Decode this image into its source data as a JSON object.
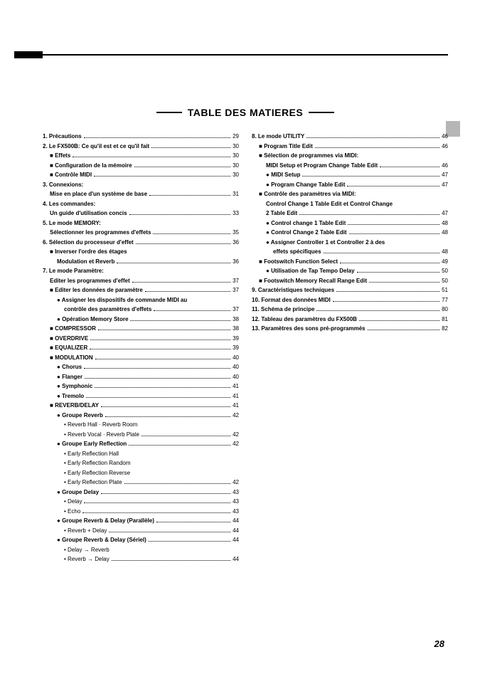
{
  "title": "TABLE DES MATIERES",
  "page_number": "28",
  "left": [
    {
      "cls": "",
      "ind": 0,
      "label": "1. Précautions",
      "page": "29"
    },
    {
      "cls": "",
      "ind": 0,
      "label": "2. Le FX500B: Ce qu'il est et ce qu'il fait",
      "page": "30"
    },
    {
      "cls": "sq",
      "ind": 1,
      "label": "Effets",
      "page": "30"
    },
    {
      "cls": "sq",
      "ind": 1,
      "label": "Configuration de la mémoire",
      "page": "30"
    },
    {
      "cls": "sq",
      "ind": 1,
      "label": "Contrôle MIDI",
      "page": "30"
    },
    {
      "cls": "",
      "ind": 0,
      "label": "3. Connexions:",
      "nopage": true
    },
    {
      "cls": "",
      "ind": 1,
      "label": "Mise en place d'un système de base",
      "page": "31"
    },
    {
      "cls": "",
      "ind": 0,
      "label": "4. Les commandes:",
      "nopage": true
    },
    {
      "cls": "",
      "ind": 1,
      "label": "Un guide d'utilisation concis",
      "page": "33"
    },
    {
      "cls": "",
      "ind": 0,
      "label": "5. Le mode MEMORY:",
      "nopage": true
    },
    {
      "cls": "",
      "ind": 1,
      "label": "Sélectionner les programmes d'effets",
      "page": "35"
    },
    {
      "cls": "",
      "ind": 0,
      "label": "6. Sélection du processeur d'effet",
      "page": "36"
    },
    {
      "cls": "sq",
      "ind": 1,
      "label": "Inverser l'ordre des étages",
      "nopage": true
    },
    {
      "cls": "",
      "ind": 2,
      "label": "Modulation et Reverb",
      "page": "36"
    },
    {
      "cls": "",
      "ind": 0,
      "label": "7. Le mode Paramètre:",
      "nopage": true
    },
    {
      "cls": "",
      "ind": 1,
      "label": "Editer les programmes d'effet",
      "page": "37"
    },
    {
      "cls": "sq",
      "ind": 1,
      "label": "Editer les données de paramètre",
      "page": "37"
    },
    {
      "cls": "dot",
      "ind": 2,
      "label": "Assigner les dispositifs de commande MIDI au",
      "nopage": true
    },
    {
      "cls": "",
      "ind": 3,
      "label": "contrôle des paramètres d'effets",
      "page": "37"
    },
    {
      "cls": "dot",
      "ind": 2,
      "label": "Opération Memory Store",
      "page": "38"
    },
    {
      "cls": "sq",
      "ind": 1,
      "label": "COMPRESSOR",
      "page": "38"
    },
    {
      "cls": "sq",
      "ind": 1,
      "label": "OVERDRIVE",
      "page": "39"
    },
    {
      "cls": "sq",
      "ind": 1,
      "label": "EQUALIZER",
      "page": "39"
    },
    {
      "cls": "sq",
      "ind": 1,
      "label": "MODULATION",
      "page": "40"
    },
    {
      "cls": "dot",
      "ind": 2,
      "label": "Chorus",
      "page": "40"
    },
    {
      "cls": "dot",
      "ind": 2,
      "label": "Flanger",
      "page": "40"
    },
    {
      "cls": "dot",
      "ind": 2,
      "label": "Symphonic",
      "page": "41"
    },
    {
      "cls": "dot",
      "ind": 2,
      "label": "Tremolo",
      "page": "41"
    },
    {
      "cls": "sq",
      "ind": 1,
      "label": "REVERB/DELAY",
      "page": "41"
    },
    {
      "cls": "dot",
      "ind": 2,
      "label": "Groupe Reverb",
      "page": "42"
    },
    {
      "cls": "bul",
      "ind": 3,
      "label": "Reverb Hall · Reverb Room",
      "nopage": true,
      "normal": true
    },
    {
      "cls": "bul",
      "ind": 3,
      "label": "Reverb Vocal · Reverb Plate",
      "page": "42",
      "normal": true
    },
    {
      "cls": "dot",
      "ind": 2,
      "label": "Groupe Early Reflection",
      "page": "42"
    },
    {
      "cls": "bul",
      "ind": 3,
      "label": "Early Reflection Hall",
      "nopage": true,
      "normal": true
    },
    {
      "cls": "bul",
      "ind": 3,
      "label": "Early Reflection Random",
      "nopage": true,
      "normal": true
    },
    {
      "cls": "bul",
      "ind": 3,
      "label": "Early Reflection Reverse",
      "nopage": true,
      "normal": true
    },
    {
      "cls": "bul",
      "ind": 3,
      "label": "Early Reflection Plate",
      "page": "42",
      "normal": true
    },
    {
      "cls": "dot",
      "ind": 2,
      "label": "Groupe Delay",
      "page": "43"
    },
    {
      "cls": "bul",
      "ind": 3,
      "label": "Delay",
      "page": "43",
      "normal": true
    },
    {
      "cls": "bul",
      "ind": 3,
      "label": "Echo",
      "page": "43",
      "normal": true
    },
    {
      "cls": "dot",
      "ind": 2,
      "label": "Groupe Reverb & Delay (Parallèle)",
      "page": "44"
    },
    {
      "cls": "bul",
      "ind": 3,
      "label": "Reverb + Delay",
      "page": "44",
      "normal": true
    },
    {
      "cls": "dot",
      "ind": 2,
      "label": "Groupe Reverb & Delay (Sériel)",
      "page": "44"
    },
    {
      "cls": "bul",
      "ind": 3,
      "label": "Delay → Reverb",
      "nopage": true,
      "normal": true
    },
    {
      "cls": "bul",
      "ind": 3,
      "label": "Reverb → Delay",
      "page": "44",
      "normal": true
    }
  ],
  "right": [
    {
      "cls": "",
      "ind": 0,
      "label": "8. Le mode UTILITY",
      "page": "46"
    },
    {
      "cls": "sq",
      "ind": 1,
      "label": "Program Title Edit",
      "page": "46"
    },
    {
      "cls": "sq",
      "ind": 1,
      "label": "Sélection de programmes via MIDI:",
      "nopage": true
    },
    {
      "cls": "",
      "ind": 2,
      "label": "MIDI Setup et Program Change Table Edit",
      "page": "46"
    },
    {
      "cls": "dot",
      "ind": 2,
      "label": "MIDI Setup",
      "page": "47"
    },
    {
      "cls": "dot",
      "ind": 2,
      "label": "Program Change Table Edit",
      "page": "47"
    },
    {
      "cls": "sq",
      "ind": 1,
      "label": "Contrôle des paramètres via MIDI:",
      "nopage": true
    },
    {
      "cls": "",
      "ind": 2,
      "label": "Control Change 1 Table Edit et Control Change",
      "nopage": true
    },
    {
      "cls": "",
      "ind": 2,
      "label": "2 Table Edit",
      "page": "47"
    },
    {
      "cls": "dot",
      "ind": 2,
      "label": "Control change 1 Table Edit",
      "page": "48"
    },
    {
      "cls": "dot",
      "ind": 2,
      "label": "Control Change 2 Table Edit",
      "page": "48"
    },
    {
      "cls": "dot",
      "ind": 2,
      "label": "Assigner Controller 1 et Controller 2 à des",
      "nopage": true
    },
    {
      "cls": "",
      "ind": 3,
      "label": "effets spécifiques",
      "page": "48"
    },
    {
      "cls": "sq",
      "ind": 1,
      "label": "Footswitch Function Select",
      "page": "49"
    },
    {
      "cls": "dot",
      "ind": 2,
      "label": "Utilisation de Tap Tempo Delay",
      "page": "50"
    },
    {
      "cls": "sq",
      "ind": 1,
      "label": "Footswitch Memory Recall Range Edit",
      "page": "50"
    },
    {
      "cls": "",
      "ind": 0,
      "label": "9. Caractéristiques techniques",
      "page": "51"
    },
    {
      "cls": "",
      "ind": 0,
      "label": "10. Format des données MIDI",
      "page": "77"
    },
    {
      "cls": "",
      "ind": 0,
      "label": "11. Schéma de principe",
      "page": "80"
    },
    {
      "cls": "",
      "ind": 0,
      "label": "12. Tableau des paramètres du FX500B",
      "page": "81"
    },
    {
      "cls": "",
      "ind": 0,
      "label": "13. Paramètres des sons pré-programmés",
      "page": "82"
    }
  ]
}
